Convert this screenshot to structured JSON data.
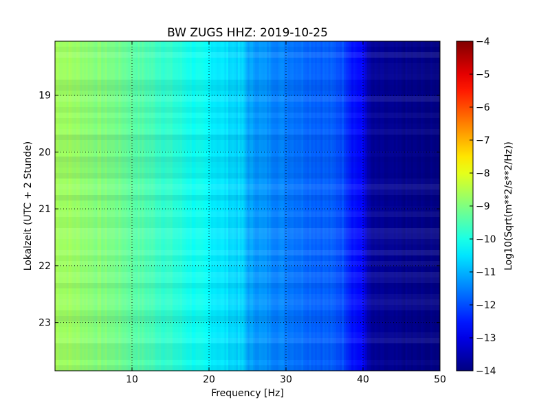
{
  "chart_data": {
    "type": "heatmap",
    "title": "BW ZUGS HHZ: 2019-10-25",
    "xlabel": "Frequency [Hz]",
    "ylabel": "Lokalzeit (UTC + 2 Stunde)",
    "xlim": [
      0,
      50
    ],
    "ylim": [
      18.05,
      23.85
    ],
    "x_ticks": [
      10,
      20,
      30,
      40,
      50
    ],
    "y_ticks": [
      19,
      20,
      21,
      22,
      23
    ],
    "y_axis_inverted": true,
    "grid": true,
    "colormap": "jet",
    "colorbar": {
      "label": "Log10(Sqrt(m**2/s**2/Hz))",
      "range": [
        -14,
        -4
      ],
      "ticks": [
        -4,
        -5,
        -6,
        -7,
        -8,
        -9,
        -10,
        -11,
        -12,
        -13,
        -14
      ]
    },
    "spectrum_profile": {
      "frequency_hz": [
        0,
        2,
        5,
        8,
        10,
        12,
        15,
        18,
        20,
        22,
        24.5,
        25,
        27,
        30,
        33,
        35,
        37.5,
        38.5,
        40,
        41,
        45,
        50
      ],
      "log10_amplitude": [
        -8.6,
        -8.7,
        -8.9,
        -9.1,
        -9.3,
        -9.5,
        -9.8,
        -10.1,
        -10.3,
        -10.5,
        -10.7,
        -11.1,
        -11.3,
        -11.5,
        -11.7,
        -11.8,
        -12.0,
        -12.5,
        -12.8,
        -13.8,
        -13.9,
        -14.0
      ]
    }
  },
  "colors": {
    "jet": [
      "#00007f",
      "#0000ff",
      "#007fff",
      "#00ffff",
      "#7fff7f",
      "#ffff00",
      "#ff7f00",
      "#ff0000",
      "#7f0000"
    ]
  }
}
